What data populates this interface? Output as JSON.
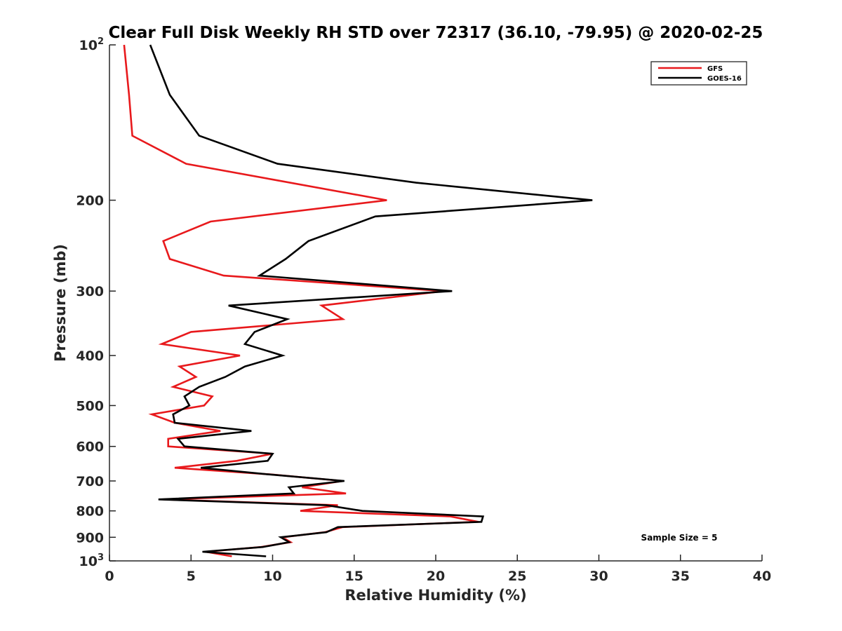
{
  "chart_data": {
    "type": "line",
    "title": "Clear Full Disk Weekly RH STD over 72317 (36.10, -79.95) @ 2020-02-25",
    "xlabel": "Relative Humidity (%)",
    "ylabel": "Pressure (mb)",
    "xlim": [
      0,
      40
    ],
    "ylim": [
      100,
      1000
    ],
    "y_scale": "log",
    "y_reversed": true,
    "x_ticks": [
      "0",
      "5",
      "10",
      "15",
      "20",
      "25",
      "30",
      "35",
      "40"
    ],
    "y_ticks": [
      {
        "value": 100,
        "base": "10",
        "sup": "2"
      },
      {
        "value": 200,
        "base": "200",
        "sup": ""
      },
      {
        "value": 300,
        "base": "300",
        "sup": ""
      },
      {
        "value": 400,
        "base": "400",
        "sup": ""
      },
      {
        "value": 500,
        "base": "500",
        "sup": ""
      },
      {
        "value": 600,
        "base": "600",
        "sup": ""
      },
      {
        "value": 700,
        "base": "700",
        "sup": ""
      },
      {
        "value": 800,
        "base": "800",
        "sup": ""
      },
      {
        "value": 900,
        "base": "900",
        "sup": ""
      },
      {
        "value": 1000,
        "base": "10",
        "sup": "3"
      }
    ],
    "grid": false,
    "legend_position": "top-right",
    "annotation": "Sample Size = 5",
    "series": [
      {
        "name": "GFS",
        "color": "#e8191c",
        "points": [
          [
            0.9,
            100
          ],
          [
            1.2,
            125
          ],
          [
            1.4,
            150
          ],
          [
            4.7,
            170
          ],
          [
            17.0,
            200
          ],
          [
            6.2,
            220
          ],
          [
            3.3,
            240
          ],
          [
            3.7,
            260
          ],
          [
            7.0,
            280
          ],
          [
            20.5,
            300
          ],
          [
            13.0,
            320
          ],
          [
            14.3,
            340
          ],
          [
            5.0,
            360
          ],
          [
            3.2,
            380
          ],
          [
            8.0,
            400
          ],
          [
            4.3,
            420
          ],
          [
            5.3,
            440
          ],
          [
            3.9,
            460
          ],
          [
            6.3,
            480
          ],
          [
            5.8,
            500
          ],
          [
            2.6,
            520
          ],
          [
            4.0,
            540
          ],
          [
            6.8,
            560
          ],
          [
            3.6,
            580
          ],
          [
            3.6,
            600
          ],
          [
            10.0,
            620
          ],
          [
            7.8,
            640
          ],
          [
            4.0,
            660
          ],
          [
            9.9,
            680
          ],
          [
            14.3,
            700
          ],
          [
            11.8,
            720
          ],
          [
            14.5,
            740
          ],
          [
            3.3,
            760
          ],
          [
            14.0,
            780
          ],
          [
            11.7,
            800
          ],
          [
            20.9,
            820
          ],
          [
            22.6,
            840
          ],
          [
            14.3,
            860
          ],
          [
            13.2,
            880
          ],
          [
            10.6,
            900
          ],
          [
            11.1,
            920
          ],
          [
            9.3,
            940
          ],
          [
            5.9,
            960
          ],
          [
            7.5,
            980
          ]
        ]
      },
      {
        "name": "GOES-16",
        "color": "#000000",
        "points": [
          [
            2.5,
            100
          ],
          [
            3.7,
            125
          ],
          [
            5.5,
            150
          ],
          [
            10.3,
            170
          ],
          [
            18.8,
            185
          ],
          [
            29.6,
            200
          ],
          [
            16.3,
            215
          ],
          [
            12.2,
            240
          ],
          [
            10.8,
            260
          ],
          [
            9.2,
            280
          ],
          [
            21.0,
            300
          ],
          [
            7.3,
            320
          ],
          [
            10.9,
            340
          ],
          [
            8.9,
            360
          ],
          [
            8.3,
            380
          ],
          [
            10.6,
            400
          ],
          [
            8.3,
            420
          ],
          [
            7.1,
            440
          ],
          [
            5.5,
            460
          ],
          [
            4.6,
            480
          ],
          [
            4.9,
            500
          ],
          [
            3.9,
            520
          ],
          [
            4.0,
            540
          ],
          [
            8.7,
            560
          ],
          [
            4.2,
            580
          ],
          [
            4.6,
            600
          ],
          [
            10.0,
            620
          ],
          [
            9.7,
            640
          ],
          [
            5.6,
            660
          ],
          [
            9.8,
            680
          ],
          [
            14.4,
            700
          ],
          [
            11.0,
            720
          ],
          [
            11.3,
            740
          ],
          [
            3.0,
            760
          ],
          [
            13.3,
            780
          ],
          [
            15.5,
            800
          ],
          [
            22.9,
            820
          ],
          [
            22.8,
            840
          ],
          [
            14.0,
            860
          ],
          [
            13.3,
            880
          ],
          [
            10.5,
            900
          ],
          [
            11.0,
            920
          ],
          [
            9.4,
            940
          ],
          [
            5.7,
            960
          ],
          [
            9.6,
            980
          ]
        ]
      }
    ]
  }
}
